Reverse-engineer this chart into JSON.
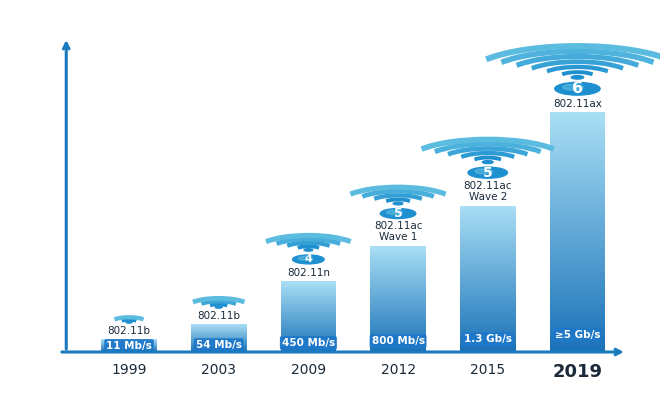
{
  "years": [
    "1999",
    "2003",
    "2009",
    "2012",
    "2015",
    "2019"
  ],
  "standards": [
    "802.11b",
    "802.11b",
    "802.11n",
    "802.11ac\nWave 1",
    "802.11ac\nWave 2",
    "802.11ax"
  ],
  "speeds": [
    "11 Mb/s",
    "54 Mb/s",
    "450 Mb/s",
    "800 Mb/s",
    "1.3 Gb/s",
    "≥5 Gb/s"
  ],
  "generations": [
    null,
    null,
    "4",
    "5",
    "5",
    "6"
  ],
  "bar_heights": [
    0.5,
    1.1,
    2.8,
    4.2,
    5.8,
    9.5
  ],
  "bar_color_top": "#aadff5",
  "bar_color_bottom": "#1a72b8",
  "wifi_arc_counts": [
    2,
    3,
    4,
    4,
    5,
    6
  ],
  "wifi_arc_color": "#1e90d0",
  "wifi_arc_color2": "#5bbce0",
  "badge_color": "#1e90d0",
  "badge_color2": "#5bbce0",
  "background": "#ffffff",
  "axis_color": "#1a7abf",
  "text_color_dark": "#1a2a3a",
  "speed_bg_color": "#1e78c8",
  "year_2019_fontsize": 13,
  "year_fontsize": 10,
  "standard_fontsize": 7.5,
  "speed_fontsize": 7.5,
  "ylim": [
    0,
    13.5
  ],
  "xlim": [
    -0.85,
    5.7
  ]
}
